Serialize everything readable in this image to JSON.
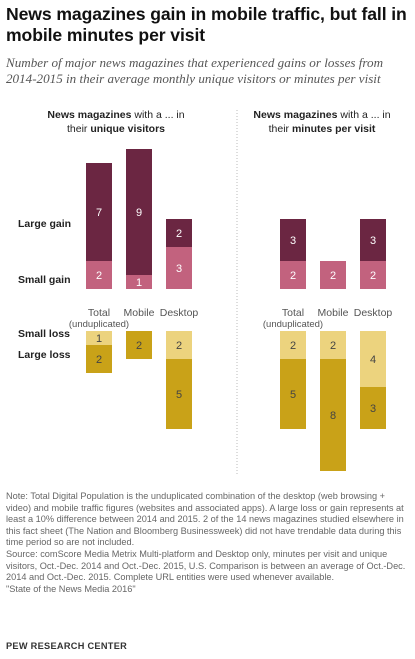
{
  "title": "News magazines gain in mobile traffic, but fall in mobile minutes per visit",
  "subtitle": "Number of major news magazines that experienced gains or losses from 2014-2015 in their average monthly unique visitors or minutes per visit",
  "notes": [
    "Note: Total Digital Population is the unduplicated combination of the desktop (web browsing + video) and mobile traffic figures (websites and associated apps). A large loss or gain represents at least a 10% difference between 2014 and 2015.  2 of the 14 news magazines studied elsewhere in this fact sheet (The Nation and Bloomberg Businessweek) did not have trendable data during this time period so are not included.",
    "Source: comScore Media Metrix Multi-platform and Desktop only, minutes per visit and unique visitors, Oct.-Dec. 2014 and Oct.-Dec. 2015, U.S. Comparison is between an average of Oct.-Dec. 2014 and Oct.-Dec. 2015. Complete URL entities were used whenever available.",
    "\"State of the News Media 2016\""
  ],
  "source_org": "PEW RESEARCH CENTER",
  "colors": {
    "large_gain": "#6b2642",
    "small_gain": "#c2627e",
    "small_loss": "#ecd37e",
    "large_loss": "#c9a218",
    "label_dark_bg": "#ffffff",
    "label_light_bg": "#444444",
    "divider": "#bbbbbb"
  },
  "chart_data": {
    "type": "bar",
    "stacking": "diverging",
    "row_labels": [
      "Large gain",
      "Small gain",
      "Small loss",
      "Large loss"
    ],
    "panels": [
      {
        "header_line1_bold": "News magazines",
        "header_line1_rest": " with a ... in",
        "header_line2_pre": "their ",
        "header_line2_bold": "unique visitors",
        "categories": [
          "Total\n(unduplicated)",
          "Mobile",
          "Desktop"
        ],
        "series": [
          {
            "name": "Large gain",
            "values": [
              7,
              9,
              2
            ]
          },
          {
            "name": "Small gain",
            "values": [
              2,
              1,
              3
            ]
          },
          {
            "name": "Small loss",
            "values": [
              1,
              0,
              2
            ]
          },
          {
            "name": "Large loss",
            "values": [
              2,
              2,
              5
            ]
          }
        ]
      },
      {
        "header_line1_bold": "News magazines",
        "header_line1_rest": " with a ... in",
        "header_line2_pre": "their ",
        "header_line2_bold": "minutes per visit",
        "categories": [
          "Total\n(unduplicated)",
          "Mobile",
          "Desktop"
        ],
        "series": [
          {
            "name": "Large gain",
            "values": [
              3,
              0,
              3
            ]
          },
          {
            "name": "Small gain",
            "values": [
              2,
              2,
              2
            ]
          },
          {
            "name": "Small loss",
            "values": [
              2,
              2,
              4
            ]
          },
          {
            "name": "Large loss",
            "values": [
              5,
              8,
              3
            ]
          }
        ]
      }
    ]
  }
}
